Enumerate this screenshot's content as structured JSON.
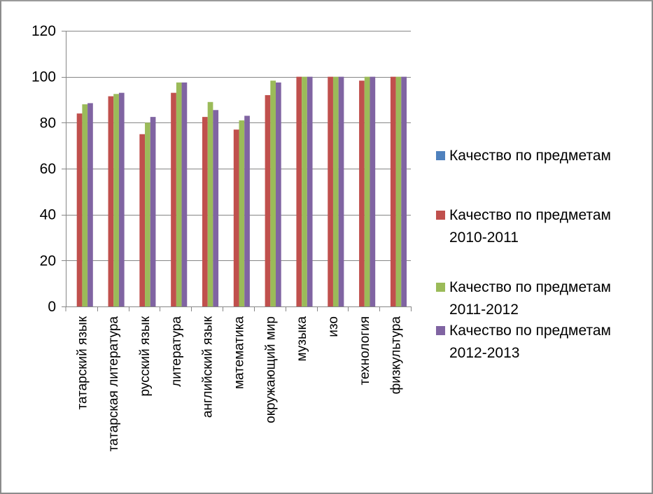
{
  "chart_data": {
    "type": "bar",
    "categories": [
      "татарский язык",
      "татарская литература",
      "русский язык",
      "литература",
      "английский язык",
      "математика",
      "окружающий мир",
      "музыка",
      "изо",
      "технология",
      "физкультура"
    ],
    "series": [
      {
        "name": "Качество по предметам",
        "color": "#4f81bd",
        "values": [
          0,
          0,
          0,
          0,
          0,
          0,
          0,
          0,
          0,
          0,
          0
        ]
      },
      {
        "name": "Качество по предметам 2010-2011",
        "color": "#c0504d",
        "values": [
          84,
          91.5,
          75,
          93,
          82.5,
          77,
          92,
          100,
          100,
          98.3,
          100
        ]
      },
      {
        "name": "Качество по предметам 2011-2012",
        "color": "#9bbb59",
        "values": [
          88,
          92.5,
          80,
          97.5,
          89,
          81,
          98.3,
          100,
          100,
          100,
          100
        ]
      },
      {
        "name": "Качество по предметам 2012-2013",
        "color": "#8064a2",
        "values": [
          88.5,
          93,
          82.5,
          97.5,
          85.5,
          83,
          97.5,
          100,
          100,
          100,
          100
        ]
      }
    ],
    "ylim": [
      0,
      120
    ],
    "yticks": [
      "0",
      "20",
      "40",
      "60",
      "80",
      "100",
      "120"
    ],
    "grid": true,
    "legend_position": "right"
  }
}
